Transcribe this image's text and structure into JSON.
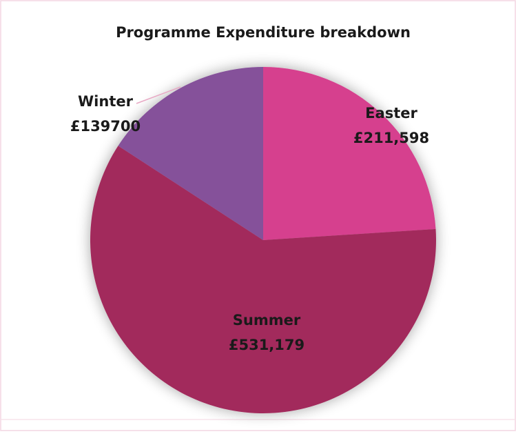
{
  "chart_data": {
    "type": "pie",
    "title": "Programme Expenditure breakdown",
    "categories": [
      "Easter",
      "Summer",
      "Winter"
    ],
    "values": [
      211598,
      531179,
      139700
    ],
    "value_labels": [
      "£211,598",
      "£531,179",
      "£139700"
    ],
    "colors": [
      "#d63f8e",
      "#a22b5b",
      "#85519a"
    ]
  }
}
